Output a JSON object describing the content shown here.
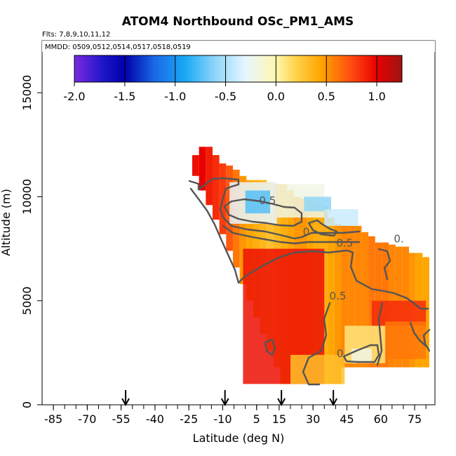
{
  "chart_data": {
    "type": "heatmap",
    "title": "ATOM4 Northbound OSc_PM1_AMS",
    "flights_text": "Flts: 7,8,9,10,11,12",
    "dates_text": "MMDD: 0509,0512,0514,0517,0518,0519",
    "xlabel": "Latitude (deg N)",
    "ylabel": "Altitude (m)",
    "xlim": [
      -90,
      84
    ],
    "ylim": [
      0,
      17500
    ],
    "x_ticks": [
      "-85",
      "-70",
      "-55",
      "-40",
      "-25",
      "-10",
      "5",
      "15",
      "30",
      "45",
      "60",
      "75"
    ],
    "x_tick_values": [
      -85,
      -70,
      -55,
      -40,
      -25,
      -10,
      5,
      15,
      30,
      45,
      60,
      75
    ],
    "y_ticks": [
      "0",
      "5000",
      "10000",
      "15000"
    ],
    "y_tick_values": [
      0,
      5000,
      10000,
      15000
    ],
    "colorbar": {
      "min": -2.0,
      "max": 1.25,
      "tick_labels": [
        "-2.0",
        "-1.5",
        "-1.0",
        "-0.5",
        "0.0",
        "0.5",
        "1.0"
      ],
      "tick_values": [
        -2.0,
        -1.5,
        -1.0,
        -0.5,
        0.0,
        0.5,
        1.0
      ],
      "stops": [
        {
          "value": -2.0,
          "color": "#7a2be0"
        },
        {
          "value": -1.7,
          "color": "#1a14c8"
        },
        {
          "value": -1.5,
          "color": "#0000aa"
        },
        {
          "value": -1.2,
          "color": "#1a6ae8"
        },
        {
          "value": -0.9,
          "color": "#1aa8f5"
        },
        {
          "value": -0.6,
          "color": "#8fd6f8"
        },
        {
          "value": -0.3,
          "color": "#e8f6ff"
        },
        {
          "value": 0.0,
          "color": "#fff7b0"
        },
        {
          "value": 0.2,
          "color": "#ffd24a"
        },
        {
          "value": 0.45,
          "color": "#ffa500"
        },
        {
          "value": 0.75,
          "color": "#ff4a10"
        },
        {
          "value": 1.0,
          "color": "#e80000"
        },
        {
          "value": 1.25,
          "color": "#9e1414"
        }
      ]
    },
    "arrows_latitude": [
      -53,
      -9,
      16,
      39
    ],
    "contour_labels": [
      {
        "text": "-0.5",
        "x": 9,
        "y": 9650
      },
      {
        "text": "0",
        "x": 27,
        "y": 8150
      },
      {
        "text": "0.5",
        "x": 44,
        "y": 7600
      },
      {
        "text": "0.",
        "x": 68,
        "y": 7800
      },
      {
        "text": "0.5",
        "x": 41,
        "y": 5050
      },
      {
        "text": "0",
        "x": 42,
        "y": 2300
      }
    ],
    "field_value_at_cells_note_removed": true,
    "columns": [
      {
        "lat": -22,
        "lat_w": 3,
        "alt_min": 11000,
        "alt_max": 12000,
        "value": 0.95
      },
      {
        "lat": -19,
        "lat_w": 3,
        "alt_min": 10300,
        "alt_max": 12400,
        "value": 1.0
      },
      {
        "lat": -16,
        "lat_w": 3,
        "alt_min": 9600,
        "alt_max": 12400,
        "value": 0.9
      },
      {
        "lat": -13,
        "lat_w": 3,
        "alt_min": 8900,
        "alt_max": 12000,
        "value": 0.85
      },
      {
        "lat": -10,
        "lat_w": 3,
        "alt_min": 8200,
        "alt_max": 11600,
        "value": 0.8
      },
      {
        "lat": -7,
        "lat_w": 3,
        "alt_min": 7400,
        "alt_max": 11500,
        "value": 0.7
      },
      {
        "lat": -4,
        "lat_w": 3,
        "alt_min": 6600,
        "alt_max": 11300,
        "value": 0.6
      },
      {
        "lat": -1,
        "lat_w": 3,
        "alt_min": 5800,
        "alt_max": 11000,
        "value": 0.5
      },
      {
        "lat": 2,
        "lat_w": 3,
        "alt_min": 5000,
        "alt_max": 10800,
        "value": 0.45
      },
      {
        "lat": 5,
        "lat_w": 3,
        "alt_min": 4200,
        "alt_max": 10800,
        "value": 0.4
      },
      {
        "lat": 8,
        "lat_w": 3,
        "alt_min": 3400,
        "alt_max": 10800,
        "value": 0.35
      },
      {
        "lat": 11,
        "lat_w": 3,
        "alt_min": 2600,
        "alt_max": 10700,
        "value": 0.3
      },
      {
        "lat": 14,
        "lat_w": 3,
        "alt_min": 1800,
        "alt_max": 10600,
        "value": 0.35
      },
      {
        "lat": 17,
        "lat_w": 3,
        "alt_min": 1000,
        "alt_max": 10600,
        "value": 0.4
      },
      {
        "lat": 20,
        "lat_w": 3,
        "alt_min": 1000,
        "alt_max": 10300,
        "value": 0.45
      },
      {
        "lat": 23,
        "lat_w": 3,
        "alt_min": 1000,
        "alt_max": 10000,
        "value": 0.5
      },
      {
        "lat": 26,
        "lat_w": 3,
        "alt_min": 1000,
        "alt_max": 9900,
        "value": 0.5
      },
      {
        "lat": 29,
        "lat_w": 3,
        "alt_min": 1000,
        "alt_max": 9900,
        "value": 0.45
      },
      {
        "lat": 32,
        "lat_w": 3,
        "alt_min": 1000,
        "alt_max": 9700,
        "value": 0.4
      },
      {
        "lat": 35,
        "lat_w": 3,
        "alt_min": 1000,
        "alt_max": 9500,
        "value": 0.4
      },
      {
        "lat": 38,
        "lat_w": 3,
        "alt_min": 1000,
        "alt_max": 9000,
        "value": 0.45
      },
      {
        "lat": 41,
        "lat_w": 3,
        "alt_min": 1000,
        "alt_max": 8700,
        "value": 0.5
      },
      {
        "lat": 44,
        "lat_w": 3,
        "alt_min": 1800,
        "alt_max": 8600,
        "value": 0.55
      },
      {
        "lat": 47,
        "lat_w": 3,
        "alt_min": 1800,
        "alt_max": 8600,
        "value": 0.55
      },
      {
        "lat": 50,
        "lat_w": 3,
        "alt_min": 1800,
        "alt_max": 8600,
        "value": 0.55
      },
      {
        "lat": 53,
        "lat_w": 3,
        "alt_min": 1800,
        "alt_max": 8300,
        "value": 0.55
      },
      {
        "lat": 56,
        "lat_w": 3,
        "alt_min": 1800,
        "alt_max": 8100,
        "value": 0.6
      },
      {
        "lat": 59,
        "lat_w": 3,
        "alt_min": 1800,
        "alt_max": 7800,
        "value": 0.6
      },
      {
        "lat": 62,
        "lat_w": 3,
        "alt_min": 1800,
        "alt_max": 7800,
        "value": 0.6
      },
      {
        "lat": 65,
        "lat_w": 3,
        "alt_min": 1800,
        "alt_max": 7700,
        "value": 0.55
      },
      {
        "lat": 68,
        "lat_w": 3,
        "alt_min": 1800,
        "alt_max": 7600,
        "value": 0.55
      },
      {
        "lat": 71,
        "lat_w": 3,
        "alt_min": 1800,
        "alt_max": 7600,
        "value": 0.55
      },
      {
        "lat": 74,
        "lat_w": 3,
        "alt_min": 1800,
        "alt_max": 7300,
        "value": 0.5
      },
      {
        "lat": 77,
        "lat_w": 3,
        "alt_min": 1800,
        "alt_max": 7300,
        "value": 0.45
      },
      {
        "lat": 80,
        "lat_w": 3,
        "alt_min": 1800,
        "alt_max": 7100,
        "value": 0.45
      }
    ],
    "features": [
      {
        "lat_min": -7,
        "lat_max": 14,
        "alt_min": 8700,
        "alt_max": 10700,
        "value": -0.3
      },
      {
        "lat_min": 0,
        "lat_max": 11,
        "alt_min": 9200,
        "alt_max": 10300,
        "value": -0.75
      },
      {
        "lat_min": 14,
        "lat_max": 35,
        "alt_min": 9000,
        "alt_max": 10600,
        "value": -0.2
      },
      {
        "lat_min": 26,
        "lat_max": 38,
        "alt_min": 9300,
        "alt_max": 10000,
        "value": -0.6
      },
      {
        "lat_min": 35,
        "lat_max": 50,
        "alt_min": 8600,
        "alt_max": 9400,
        "value": -0.4
      },
      {
        "lat_min": -1,
        "lat_max": 35,
        "alt_min": 1000,
        "alt_max": 7500,
        "value": 0.95
      },
      {
        "lat_min": 44,
        "lat_max": 62,
        "alt_min": 2000,
        "alt_max": 3800,
        "value": 0.1
      },
      {
        "lat_min": 47,
        "lat_max": 56,
        "alt_min": 2000,
        "alt_max": 2700,
        "value": -0.2
      },
      {
        "lat_min": 56,
        "lat_max": 80,
        "alt_min": 3800,
        "alt_max": 5000,
        "value": 0.85
      },
      {
        "lat_min": 62,
        "lat_max": 80,
        "alt_min": 2200,
        "alt_max": 4000,
        "value": 0.6
      },
      {
        "lat_min": 20,
        "lat_max": 44,
        "alt_min": 1000,
        "alt_max": 2400,
        "value": 0.3
      }
    ]
  }
}
